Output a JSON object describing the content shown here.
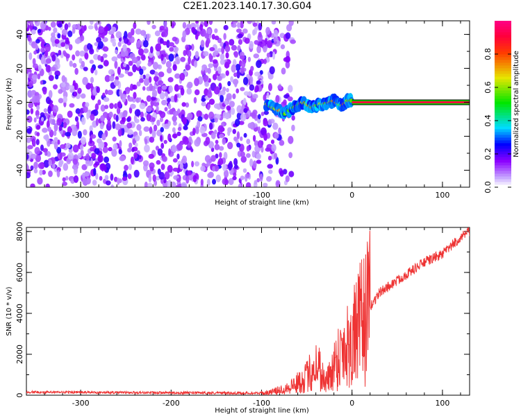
{
  "title": "C2E1.2023.140.17.30.G04",
  "chart_data": [
    {
      "type": "heatmap",
      "xlabel": "Height of straight line (km)",
      "ylabel": "Frequency (Hz)",
      "xlim": [
        -360,
        130
      ],
      "ylim": [
        -50,
        48
      ],
      "xticks": [
        -300,
        -200,
        -100,
        0,
        100
      ],
      "yticks": [
        -40,
        -20,
        0,
        20,
        40
      ],
      "colorbar": {
        "label": "Normalized spectral amplitude",
        "range": [
          0.0,
          1.0
        ],
        "ticks": [
          "0.0",
          "0.2",
          "0.4",
          "0.6",
          "0.8"
        ]
      },
      "noise_region_x": [
        -360,
        -80
      ],
      "signal_track": [
        {
          "x": -95,
          "f": -1
        },
        {
          "x": -88,
          "f": -3
        },
        {
          "x": -80,
          "f": -5
        },
        {
          "x": -75,
          "f": -7
        },
        {
          "x": -70,
          "f": -5
        },
        {
          "x": -65,
          "f": -3
        },
        {
          "x": -60,
          "f": -2
        },
        {
          "x": -55,
          "f": 0
        },
        {
          "x": -50,
          "f": -1
        },
        {
          "x": -45,
          "f": -3
        },
        {
          "x": -40,
          "f": -2
        },
        {
          "x": -35,
          "f": -1
        },
        {
          "x": -30,
          "f": -1
        },
        {
          "x": -25,
          "f": 0
        },
        {
          "x": -20,
          "f": 1
        },
        {
          "x": -15,
          "f": -1
        },
        {
          "x": -10,
          "f": -2
        },
        {
          "x": -5,
          "f": 1
        },
        {
          "x": 0,
          "f": 1
        },
        {
          "x": 130,
          "f": 0
        }
      ],
      "steady_line_x": [
        0,
        130
      ],
      "steady_line_f": 0
    },
    {
      "type": "line",
      "xlabel": "Height of straight line (km)",
      "ylabel": "SNR (10 * v/v)",
      "xlim": [
        -360,
        130
      ],
      "ylim": [
        0,
        8200
      ],
      "xticks": [
        -300,
        -200,
        -100,
        0,
        100
      ],
      "yticks": [
        0,
        2000,
        4000,
        6000,
        8000
      ],
      "series": [
        {
          "color": "#ee3333",
          "x": [
            -360,
            -300,
            -200,
            -100,
            -90,
            -80,
            -70,
            -60,
            -50,
            -45,
            -40,
            -35,
            -30,
            -25,
            -20,
            -10,
            0,
            10,
            15,
            20,
            30,
            40,
            50,
            60,
            70,
            80,
            90,
            100,
            110,
            120,
            130
          ],
          "y": [
            150,
            140,
            120,
            100,
            150,
            250,
            400,
            600,
            900,
            1200,
            1500,
            1300,
            600,
            900,
            1500,
            2300,
            2700,
            3500,
            3900,
            4300,
            5000,
            5300,
            5600,
            5900,
            6200,
            6500,
            6700,
            6900,
            7300,
            7700,
            8000
          ]
        }
      ]
    }
  ]
}
